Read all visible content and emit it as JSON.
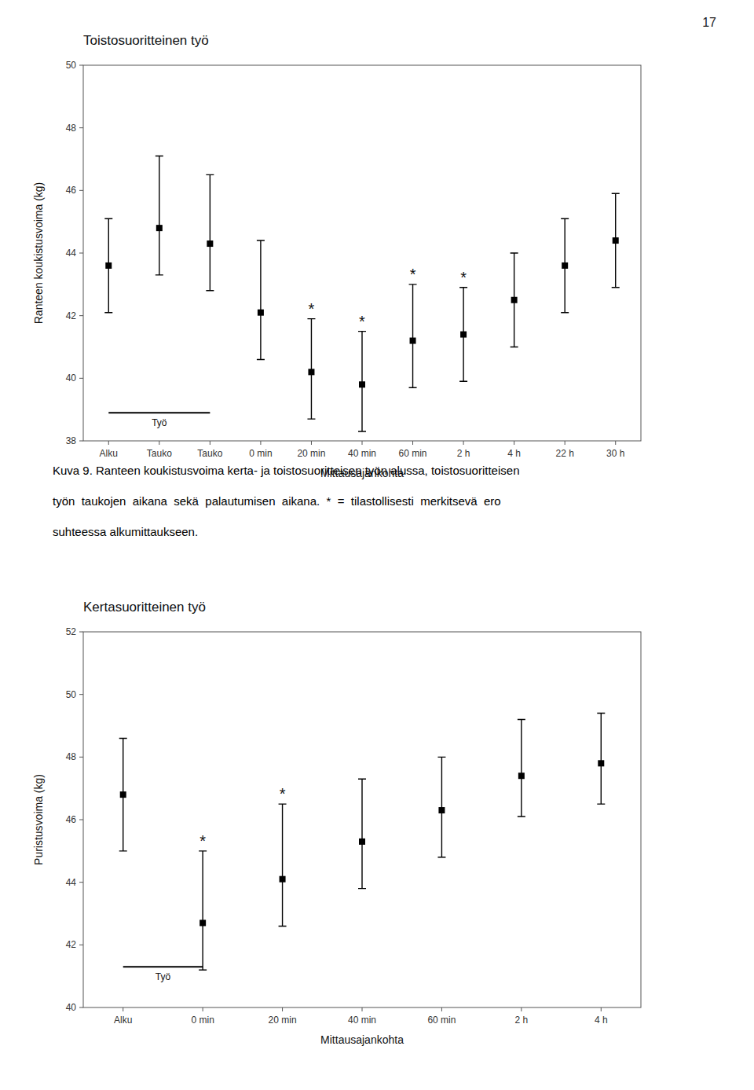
{
  "chart_data": [
    {
      "type": "errorbar",
      "title": "Toistosuoritteinen työ",
      "x_label": "Mittausajankohta",
      "y_label": "Ranteen koukistusvoima (kg)",
      "categories": [
        "Alku",
        "Tauko",
        "Tauko",
        "0 min",
        "20 min",
        "40 min",
        "60 min",
        "2 h",
        "4 h",
        "22 h",
        "30 h"
      ],
      "values": [
        43.6,
        44.8,
        44.3,
        42.1,
        40.2,
        39.8,
        41.2,
        41.4,
        42.5,
        43.6,
        44.4
      ],
      "error_upper": [
        1.5,
        2.3,
        2.2,
        2.3,
        1.7,
        1.7,
        1.8,
        1.5,
        1.5,
        1.5,
        1.5
      ],
      "error_lower": [
        1.5,
        1.5,
        1.5,
        1.5,
        1.5,
        1.5,
        1.5,
        1.5,
        1.5,
        1.5,
        1.5
      ],
      "ylim": [
        38,
        50
      ],
      "yticks": [
        38,
        40,
        42,
        44,
        46,
        48,
        50
      ],
      "color": "#000000",
      "marker": "square",
      "grid": false,
      "annotations": [
        {
          "text": "*",
          "index": 4
        },
        {
          "text": "*",
          "index": 5
        },
        {
          "text": "*",
          "index": 6
        },
        {
          "text": "*",
          "index": 7
        }
      ],
      "work_period": {
        "label": "Työ",
        "y": 38.9,
        "x_span": [
          0,
          2
        ]
      }
    },
    {
      "type": "errorbar",
      "title": "Kertasuoritteinen työ",
      "x_label": "Mittausajankohta",
      "y_label": "Puristusvoima (kg)",
      "categories": [
        "Alku",
        "0 min",
        "20 min",
        "40 min",
        "60 min",
        "2 h",
        "4 h"
      ],
      "values": [
        46.8,
        42.7,
        44.1,
        45.3,
        46.3,
        47.4,
        47.8
      ],
      "error_upper": [
        1.8,
        2.3,
        2.4,
        2.0,
        1.7,
        1.8,
        1.6
      ],
      "error_lower": [
        1.8,
        1.5,
        1.5,
        1.5,
        1.5,
        1.3,
        1.3
      ],
      "ylim": [
        40,
        52
      ],
      "yticks": [
        40,
        42,
        44,
        46,
        48,
        50,
        52
      ],
      "color": "#000000",
      "marker": "square",
      "grid": false,
      "annotations": [
        {
          "text": "*",
          "index": 1
        },
        {
          "text": "*",
          "index": 2
        }
      ],
      "work_period": {
        "label": "Työ",
        "y": 41.3,
        "x_span": [
          0,
          1
        ]
      }
    }
  ],
  "caption": [
    "Kuva 9. Ranteen koukistusvoima kerta- ja toistosuoritteisen työn alussa, toistosuoritteisen",
    "työn  taukojen  aikana  sekä  palautumisen  aikana.  *  =  tilastollisesti  merkitsevä  ero",
    "suhteessa alkumittaukseen."
  ],
  "page_number": "17"
}
